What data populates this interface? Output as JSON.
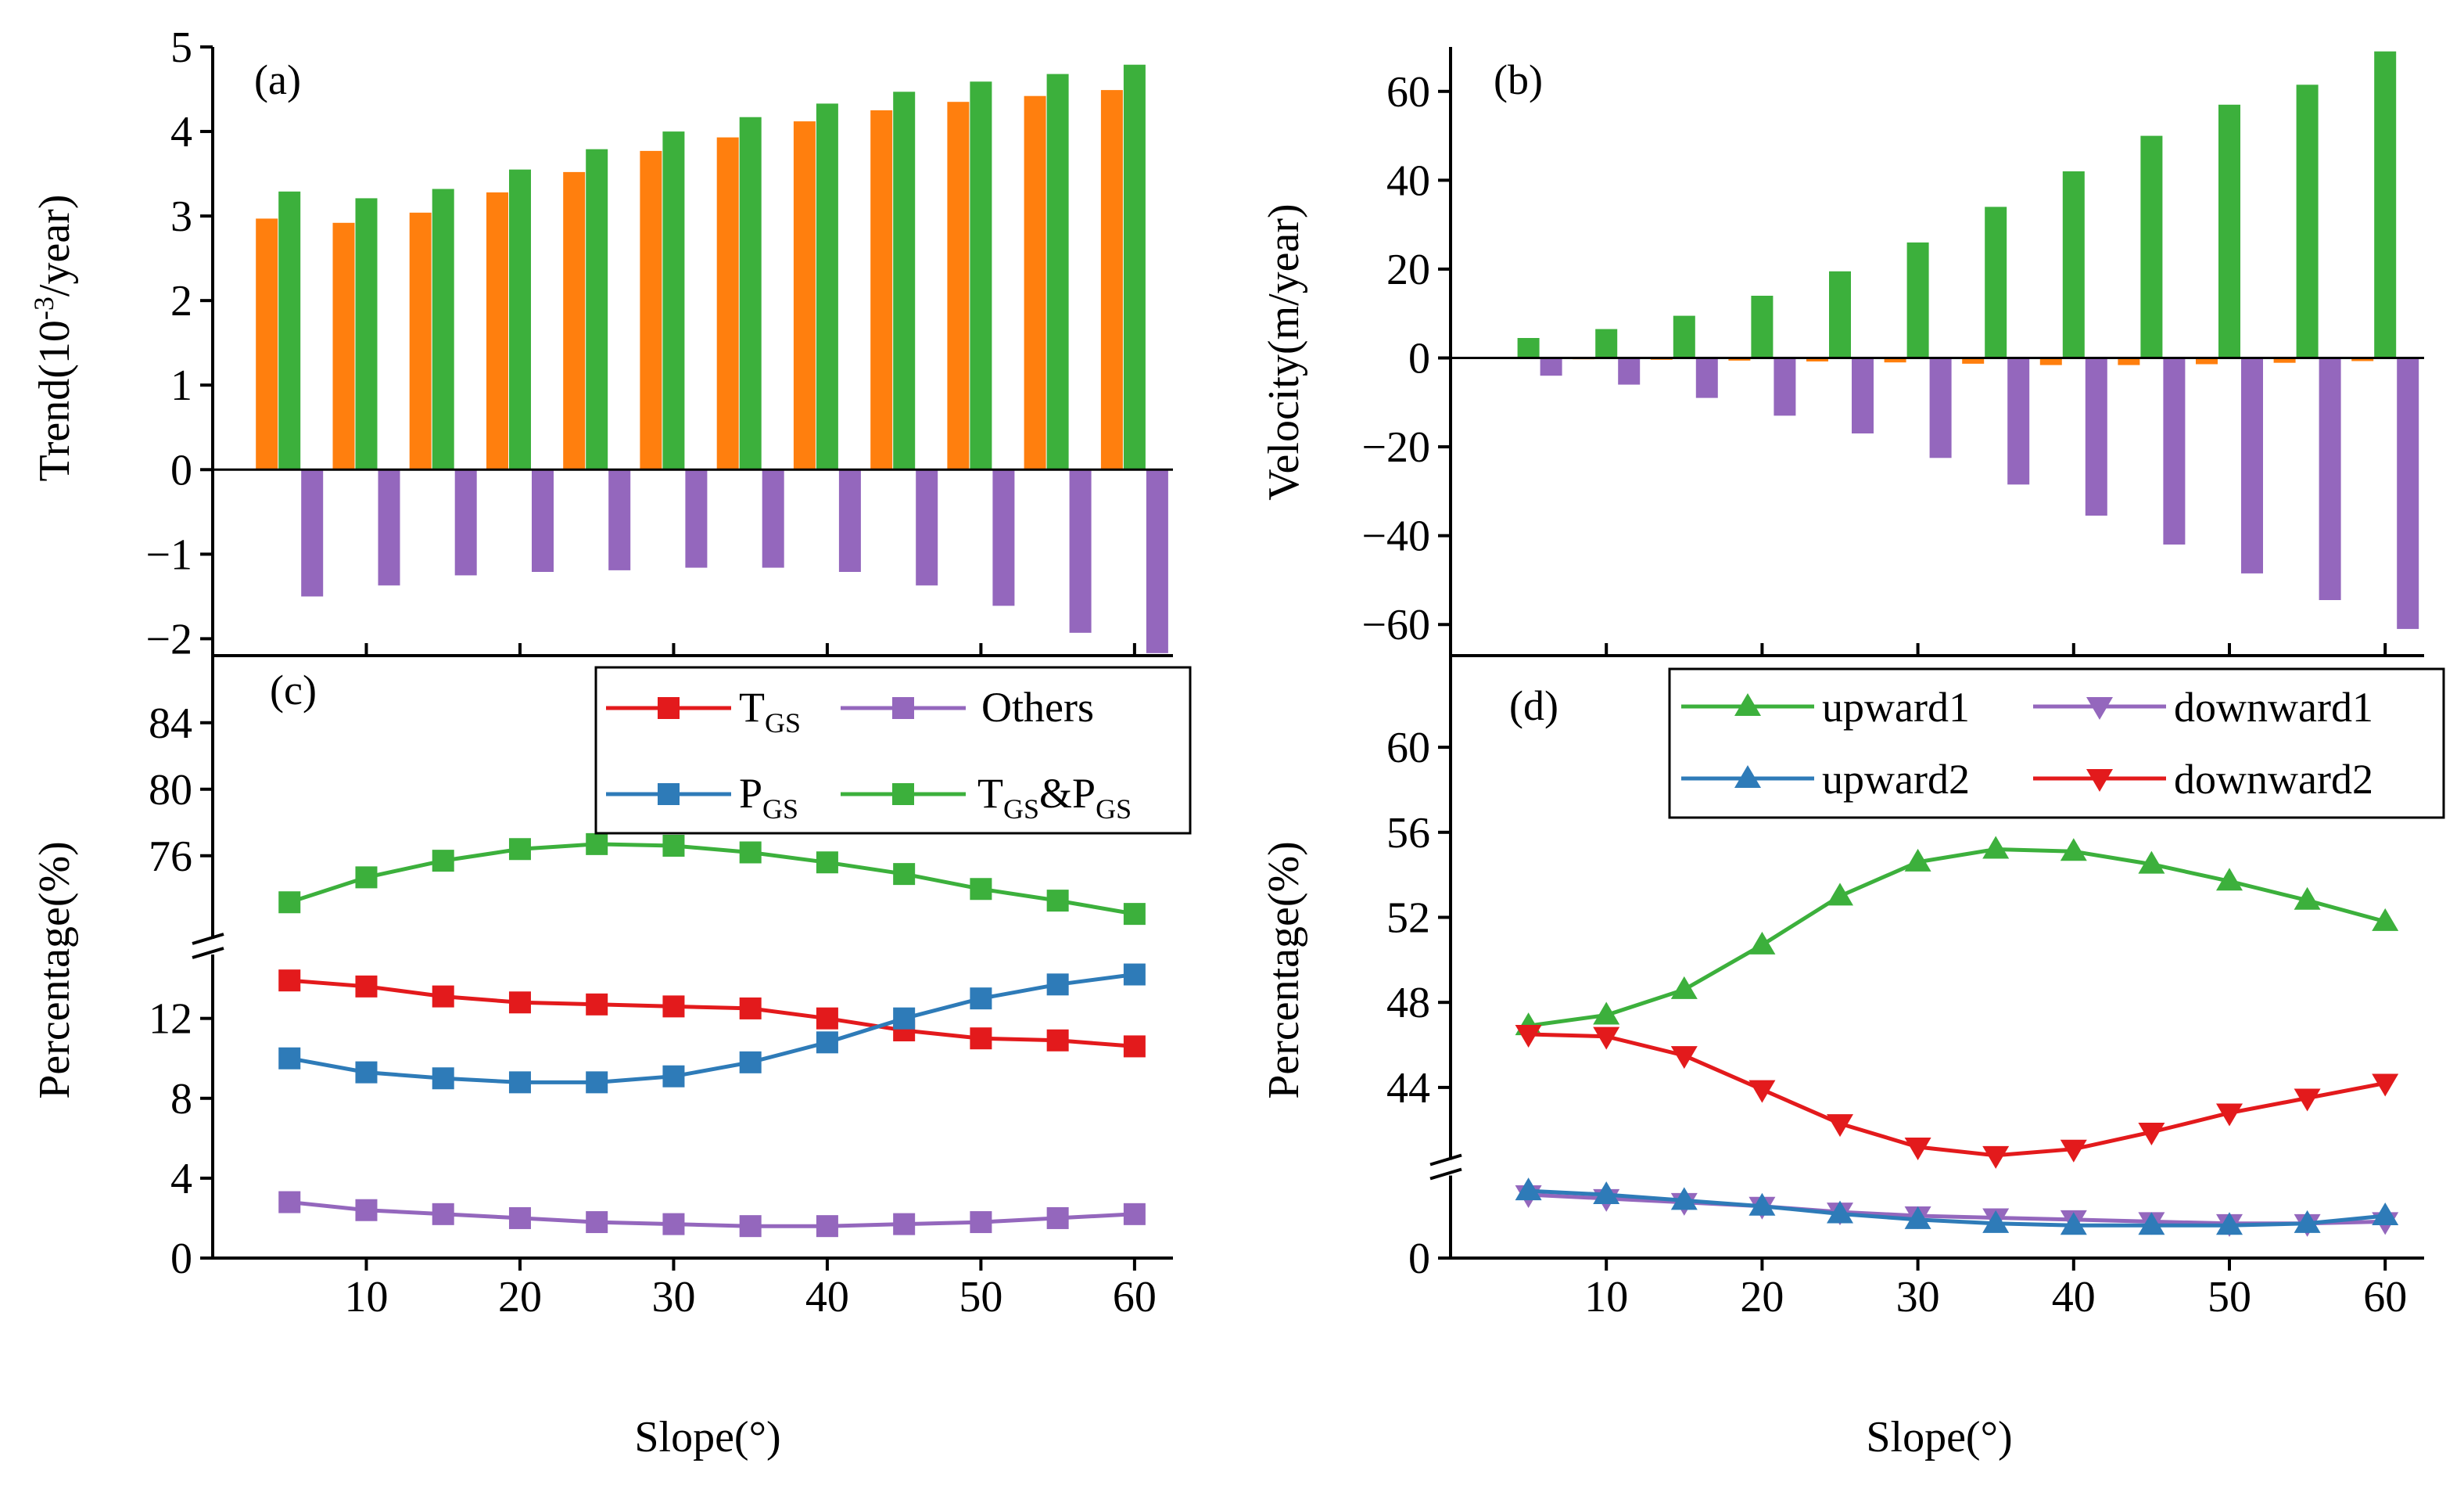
{
  "figure": {
    "x_label": "Slope(°)"
  },
  "colors": {
    "orange": "#ff7f0e",
    "green": "#3cb03c",
    "purple": "#9467bd",
    "red": "#e31a1c",
    "blue": "#2e7bb8",
    "axis": "#000000"
  },
  "chart_data": [
    {
      "panel": "(a)",
      "type": "bar",
      "ylabel_main": "Trend(10",
      "ylabel_sup": "-3",
      "ylabel_tail": "/year)",
      "xlim": [
        0,
        62.5
      ],
      "ylim": [
        -2.2,
        5
      ],
      "yticks": [
        -2,
        -1,
        0,
        1,
        2,
        3,
        4,
        5
      ],
      "ytick_labels": [
        "−2",
        "−1",
        "0",
        "1",
        "2",
        "3",
        "4",
        "5"
      ],
      "xticks": [
        10,
        20,
        30,
        40,
        50,
        60
      ],
      "categories": [
        5,
        10,
        15,
        20,
        25,
        30,
        35,
        40,
        45,
        50,
        55,
        60
      ],
      "series": [
        {
          "color": "orange",
          "values": [
            2.97,
            2.92,
            3.04,
            3.28,
            3.52,
            3.77,
            3.93,
            4.12,
            4.25,
            4.35,
            4.42,
            4.49
          ]
        },
        {
          "color": "green",
          "values": [
            3.29,
            3.21,
            3.32,
            3.55,
            3.79,
            4.0,
            4.17,
            4.33,
            4.47,
            4.59,
            4.68,
            4.79
          ]
        },
        {
          "color": "purple",
          "values": [
            -1.5,
            -1.37,
            -1.25,
            -1.21,
            -1.19,
            -1.16,
            -1.16,
            -1.21,
            -1.37,
            -1.61,
            -1.93,
            -2.17
          ]
        }
      ]
    },
    {
      "panel": "(b)",
      "type": "bar",
      "ylabel": "Velocity(m/year)",
      "xlim": [
        0,
        62.5
      ],
      "ylim": [
        -67,
        70
      ],
      "yticks": [
        -60,
        -40,
        -20,
        0,
        20,
        40,
        60
      ],
      "ytick_labels": [
        "−60",
        "−40",
        "−20",
        "0",
        "20",
        "40",
        "60"
      ],
      "xticks": [
        10,
        20,
        30,
        40,
        50,
        60
      ],
      "categories": [
        5,
        10,
        15,
        20,
        25,
        30,
        35,
        40,
        45,
        50,
        55,
        60
      ],
      "series": [
        {
          "color": "orange",
          "values": [
            -0.2,
            -0.3,
            -0.4,
            -0.6,
            -0.8,
            -1.0,
            -1.3,
            -1.6,
            -1.6,
            -1.4,
            -1.1,
            -0.7
          ]
        },
        {
          "color": "green",
          "values": [
            4.5,
            6.5,
            9.5,
            14,
            19.5,
            26,
            34,
            42,
            50,
            57,
            61.5,
            69
          ]
        },
        {
          "color": "purple",
          "values": [
            -4,
            -6,
            -9,
            -13,
            -17,
            -22.5,
            -28.5,
            -35.5,
            -42,
            -48.5,
            -54.5,
            -61
          ]
        }
      ]
    },
    {
      "panel": "(c)",
      "type": "line",
      "ylabel": "Percentage(%)",
      "xlim": [
        0,
        62.5
      ],
      "x": [
        5,
        10,
        15,
        20,
        25,
        30,
        35,
        40,
        45,
        50,
        55,
        60
      ],
      "xticks": [
        10,
        20,
        30,
        40,
        50,
        60
      ],
      "xtick_labels": [
        "10",
        "20",
        "30",
        "40",
        "50",
        "60"
      ],
      "lower_ylim": [
        0,
        15.2
      ],
      "lower_yticks": [
        0,
        4,
        8,
        12
      ],
      "upper_ylim": [
        71,
        87
      ],
      "upper_yticks": [
        76,
        80,
        84
      ],
      "legend": {
        "tgs_label": "T",
        "tgs_sub": "GS",
        "pgs_label": "P",
        "pgs_sub": "GS",
        "others_label": "Others",
        "both_t": "T",
        "both_t_sub": "GS",
        "both_amp": "&P",
        "both_p_sub": "GS"
      },
      "series": [
        {
          "name": "TGS",
          "color": "red",
          "axis": "lower",
          "values": [
            13.9,
            13.6,
            13.1,
            12.8,
            12.7,
            12.6,
            12.5,
            12.0,
            11.4,
            11.0,
            10.9,
            10.6
          ]
        },
        {
          "name": "PGS",
          "color": "blue",
          "axis": "lower",
          "values": [
            10.0,
            9.3,
            9.0,
            8.8,
            8.8,
            9.1,
            9.8,
            10.8,
            12.0,
            13.0,
            13.7,
            14.2
          ]
        },
        {
          "name": "Others",
          "color": "purple",
          "axis": "lower",
          "values": [
            2.8,
            2.4,
            2.2,
            2.0,
            1.8,
            1.7,
            1.6,
            1.6,
            1.7,
            1.8,
            2.0,
            2.2
          ]
        },
        {
          "name": "TGS&PGS",
          "color": "green",
          "axis": "upper",
          "values": [
            73.2,
            74.7,
            75.7,
            76.4,
            76.7,
            76.6,
            76.2,
            75.6,
            74.9,
            74.0,
            73.3,
            72.5
          ]
        }
      ]
    },
    {
      "panel": "(d)",
      "type": "line",
      "ylabel": "Percentage(%)",
      "xlim": [
        0,
        62.5
      ],
      "x": [
        5,
        10,
        15,
        20,
        25,
        30,
        35,
        40,
        45,
        50,
        55,
        60
      ],
      "xticks": [
        10,
        20,
        30,
        40,
        50,
        60
      ],
      "xtick_labels": [
        "10",
        "20",
        "30",
        "40",
        "50",
        "60"
      ],
      "lower_ylim": [
        0,
        4.4
      ],
      "lower_yticks": [
        0
      ],
      "upper_ylim": [
        40.5,
        63.5
      ],
      "upper_yticks": [
        44,
        48,
        52,
        56,
        60
      ],
      "series": [
        {
          "name": "upward1",
          "color": "green",
          "marker": "triangle-up",
          "axis": "upper",
          "values": [
            46.9,
            47.4,
            48.6,
            50.7,
            53.0,
            54.6,
            55.2,
            55.1,
            54.5,
            53.7,
            52.8,
            51.8
          ]
        },
        {
          "name": "downward1",
          "color": "purple",
          "marker": "triangle-down",
          "axis": "lower",
          "values": [
            3.3,
            3.1,
            2.9,
            2.7,
            2.4,
            2.2,
            2.1,
            2.0,
            1.9,
            1.8,
            1.8,
            1.9
          ]
        },
        {
          "name": "upward2",
          "color": "blue",
          "marker": "triangle-up",
          "axis": "lower",
          "values": [
            3.5,
            3.3,
            3.0,
            2.7,
            2.3,
            2.0,
            1.8,
            1.7,
            1.7,
            1.7,
            1.8,
            2.2
          ]
        },
        {
          "name": "downward2",
          "color": "red",
          "marker": "triangle-down",
          "axis": "upper",
          "values": [
            46.5,
            46.4,
            45.5,
            43.9,
            42.3,
            41.2,
            40.8,
            41.1,
            41.9,
            42.8,
            43.5,
            44.2
          ]
        }
      ]
    }
  ]
}
